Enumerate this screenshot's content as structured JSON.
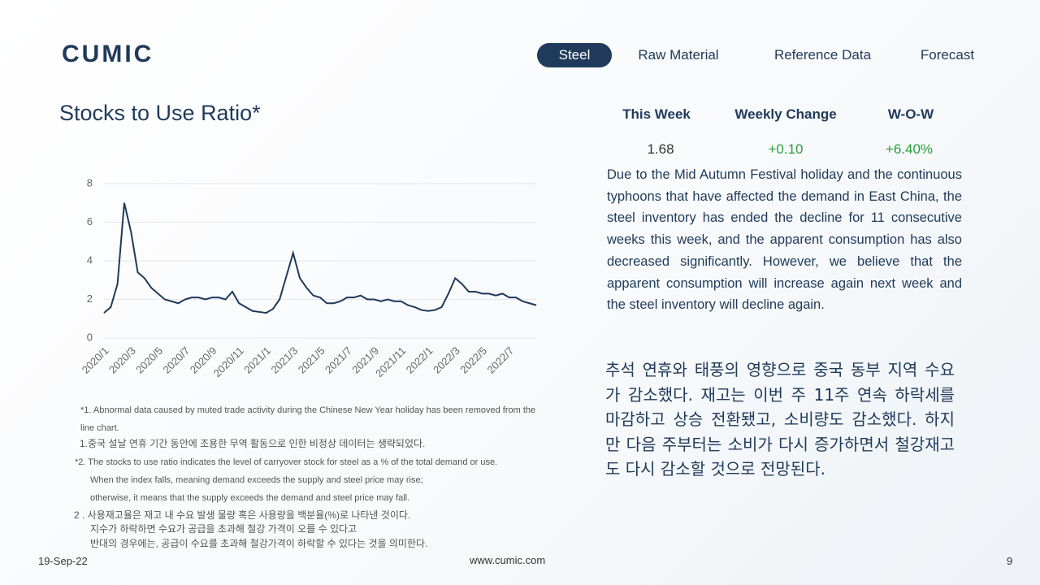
{
  "logo": "CUMIC",
  "nav": [
    "Steel",
    "Raw Material",
    "Reference Data",
    "Forecast"
  ],
  "stats": {
    "headers": [
      "This Week",
      "Weekly Change",
      "W-O-W"
    ],
    "values": [
      "1.68",
      "+0.10",
      "+6.40%"
    ]
  },
  "summary_en": "Due to the Mid Autumn Festival holiday and the continuous typhoons that have affected the demand in East China, the steel inventory has ended the decline for 11 consecutive weeks this week, and the apparent consumption has also decreased significantly. However, we believe that the apparent consumption will increase again next week and the steel inventory will decline again.",
  "summary_ko": "추석 연휴와 태풍의 영향으로 중국 동부 지역 수요가 감소했다. 재고는 이번 주 11주 연속 하락세를 마감하고 상승 전환됐고, 소비량도 감소했다. 하지만 다음 주부터는 소비가 다시 증가하면서 철강재고도 다시 감소할 것으로 전망된다.",
  "notes": [
    "*1. Abnormal data caused by muted trade activity during the Chinese New Year holiday has been removed from the line chart.",
    "1.중국 설날 연휴 기간 동안에 조용한 무역 활동으로 인한 비정상 데이터는 생략되었다.",
    "*2. The stocks to use ratio indicates the level of carryover stock for steel as a % of the total demand or use.",
    "When the index falls, meaning demand exceeds the supply and steel price may rise;",
    "otherwise, it means that the supply exceeds the demand and steel price may fall.",
    "2 . 사용재고율은 재고 내 수요 발생 물량 혹은 사용량을 백분율(%)로 나타낸 것이다.",
    "지수가 하락하면 수요가 공급을 초과해 철강 가격이 오를 수 있다고",
    "반대의 경우에는, 공급이 수요를 초과해 철강가격이 하락할 수 있다는 것을 의미한다."
  ],
  "footer": {
    "date": "19-Sep-22",
    "site": "www.cumic.com",
    "page": "9"
  },
  "chart_data": {
    "type": "line",
    "title": "Stocks to Use Ratio*",
    "categories": [
      "2020/1",
      null,
      null,
      null,
      "2020/3",
      null,
      null,
      null,
      "2020/5",
      null,
      null,
      null,
      "2020/7",
      null,
      null,
      null,
      "2020/9",
      null,
      null,
      null,
      "2020/11",
      null,
      null,
      null,
      "2021/1",
      null,
      null,
      null,
      "2021/3",
      null,
      null,
      null,
      "2021/5",
      null,
      null,
      null,
      "2021/7",
      null,
      null,
      null,
      "2021/9",
      null,
      null,
      null,
      "2021/11",
      null,
      null,
      null,
      "2022/1",
      null,
      null,
      null,
      "2022/3",
      null,
      null,
      null,
      "2022/5",
      null,
      null,
      null,
      "2022/7",
      null,
      null,
      null,
      null
    ],
    "series": [
      {
        "name": "Stocks to Use Ratio",
        "color": "#1f3a5a",
        "values": [
          1.3,
          1.6,
          2.8,
          7.0,
          5.5,
          3.4,
          3.1,
          2.6,
          2.3,
          2.0,
          1.9,
          1.8,
          2.0,
          2.1,
          2.1,
          2.0,
          2.1,
          2.1,
          2.0,
          2.4,
          1.8,
          1.6,
          1.4,
          1.35,
          1.3,
          1.5,
          2.0,
          3.2,
          4.4,
          3.1,
          2.6,
          2.2,
          2.1,
          1.8,
          1.8,
          1.9,
          2.1,
          2.1,
          2.2,
          2.0,
          2.0,
          1.9,
          2.0,
          1.9,
          1.9,
          1.7,
          1.6,
          1.45,
          1.4,
          1.45,
          1.6,
          2.3,
          3.1,
          2.8,
          2.4,
          2.4,
          2.3,
          2.3,
          2.2,
          2.3,
          2.1,
          2.1,
          1.9,
          1.8,
          1.7
        ]
      }
    ],
    "ylim": [
      0,
      8
    ],
    "yticks": [
      0,
      2,
      4,
      6,
      8
    ],
    "grid": true
  }
}
